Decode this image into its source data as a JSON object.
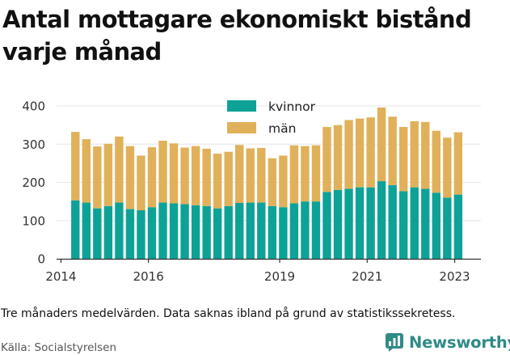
{
  "title": "Antal mottagare ekonomiskt bistånd varje månad",
  "footnote": "Tre månaders medelvärden. Data saknas ibland på grund av statistikssekretess.",
  "source": "Källa: Socialstyrelsen",
  "logo": {
    "text": "Newsworthy",
    "icon": "newsworthy-logo-icon"
  },
  "colors": {
    "kvinnor": "#0ea297",
    "man": "#e0b15a",
    "axis": "#333333",
    "grid": "#e6e6e6",
    "brand": "#2e8b86"
  },
  "chart_data": {
    "type": "bar",
    "stacked": true,
    "x_tick_labels": [
      "2014",
      "2016",
      "2019",
      "2021",
      "2023"
    ],
    "x_tick_values": [
      2014.0,
      2016.0,
      2019.0,
      2021.0,
      2023.0
    ],
    "xlim": [
      2013.9,
      2023.6
    ],
    "ylim": [
      0,
      400
    ],
    "y_ticks": [
      0,
      100,
      200,
      300,
      400
    ],
    "legend_position": "top-center",
    "x": [
      2014.33,
      2014.58,
      2014.83,
      2015.08,
      2015.33,
      2015.58,
      2015.83,
      2016.08,
      2016.33,
      2016.58,
      2016.83,
      2017.08,
      2017.33,
      2017.58,
      2017.83,
      2018.08,
      2018.33,
      2018.58,
      2018.83,
      2019.08,
      2019.33,
      2019.58,
      2019.83,
      2020.08,
      2020.33,
      2020.58,
      2020.83,
      2021.08,
      2021.33,
      2021.58,
      2021.83,
      2022.08,
      2022.33,
      2022.58,
      2022.83,
      2023.08
    ],
    "series": [
      {
        "name": "kvinnor",
        "values": [
          153,
          147,
          132,
          138,
          147,
          130,
          127,
          135,
          147,
          145,
          143,
          140,
          138,
          132,
          138,
          146,
          147,
          147,
          138,
          135,
          145,
          150,
          150,
          175,
          180,
          183,
          187,
          187,
          203,
          193,
          177,
          187,
          183,
          173,
          160,
          168
        ]
      },
      {
        "name": "män",
        "values": [
          179,
          166,
          162,
          163,
          173,
          165,
          143,
          157,
          162,
          157,
          148,
          155,
          150,
          143,
          142,
          152,
          142,
          143,
          125,
          135,
          152,
          145,
          147,
          170,
          170,
          180,
          180,
          183,
          193,
          179,
          168,
          173,
          175,
          162,
          157,
          163
        ]
      }
    ]
  }
}
